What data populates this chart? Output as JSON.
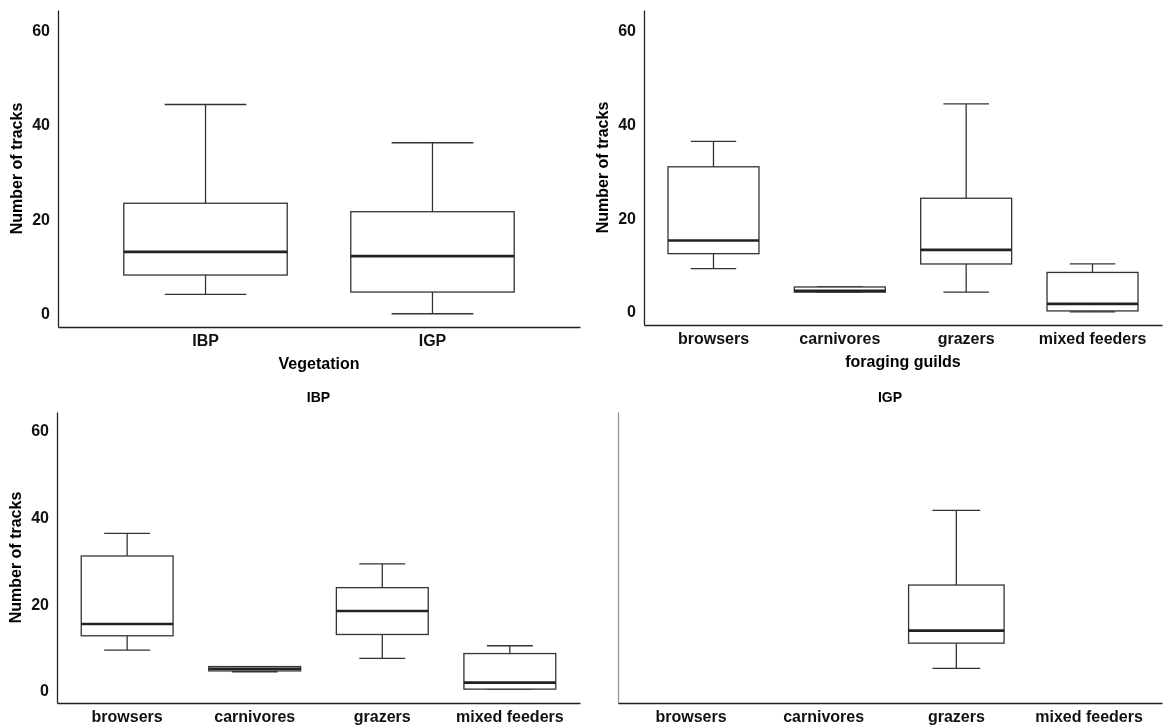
{
  "chart_data": [
    {
      "type": "box",
      "xlabel": "Vegetation",
      "ylabel": "Number of tracks",
      "categories": [
        "IBP",
        "IGP"
      ],
      "ylim": [
        -2.8,
        64.3
      ],
      "yticks": [
        0,
        20,
        40,
        60
      ],
      "boxes": [
        {
          "low": 4.1,
          "q1": 8.2,
          "median": 13.1,
          "q3": 23.4,
          "high": 44.3
        },
        {
          "low": 0,
          "q1": 4.6,
          "median": 12.2,
          "q3": 21.6,
          "high": 36.2
        }
      ]
    },
    {
      "type": "box",
      "xlabel": "foraging guilds",
      "ylabel": "Number of tracks",
      "categories": [
        "browsers",
        "carnivores",
        "grazers",
        "mixed feeders"
      ],
      "ylim": [
        -2.8,
        64.3
      ],
      "yticks": [
        0,
        20,
        40,
        60
      ],
      "boxes": [
        {
          "low": 9.2,
          "q1": 12.4,
          "median": 15.2,
          "q3": 30.9,
          "high": 36.3
        },
        {
          "low": 4.2,
          "q1": 4.2,
          "median": 4.5,
          "q3": 5.3,
          "high": 5.3
        },
        {
          "low": 4.2,
          "q1": 10.2,
          "median": 13.2,
          "q3": 24.2,
          "high": 44.3
        },
        {
          "low": 0,
          "q1": 0.2,
          "median": 1.7,
          "q3": 8.4,
          "high": 10.2
        }
      ]
    },
    {
      "type": "box",
      "title": "IBP",
      "ylabel": "Number of tracks",
      "categories": [
        "browsers",
        "carnivores",
        "grazers",
        "mixed feeders"
      ],
      "ylim": [
        -2.8,
        64.3
      ],
      "yticks": [
        0,
        20,
        40,
        60
      ],
      "boxes": [
        {
          "low": 9.4,
          "q1": 12.7,
          "median": 15.4,
          "q3": 31.1,
          "high": 36.3
        },
        {
          "low": 4.4,
          "q1": 4.6,
          "median": 5.1,
          "q3": 5.6,
          "high": 5.6
        },
        {
          "low": 7.5,
          "q1": 13.0,
          "median": 18.4,
          "q3": 23.8,
          "high": 29.3
        },
        {
          "low": 0.4,
          "q1": 0.4,
          "median": 1.9,
          "q3": 8.6,
          "high": 10.4
        }
      ]
    },
    {
      "type": "box",
      "title": "IGP",
      "categories": [
        "browsers",
        "carnivores",
        "grazers",
        "mixed feeders"
      ],
      "ylim": [
        -2.8,
        64.3
      ],
      "yticks": [
        0,
        20,
        40,
        60
      ],
      "tick_labels": "x",
      "boxes": [
        null,
        null,
        {
          "low": 5.2,
          "q1": 11.0,
          "median": 13.9,
          "q3": 24.4,
          "high": 41.6
        },
        null
      ]
    }
  ]
}
